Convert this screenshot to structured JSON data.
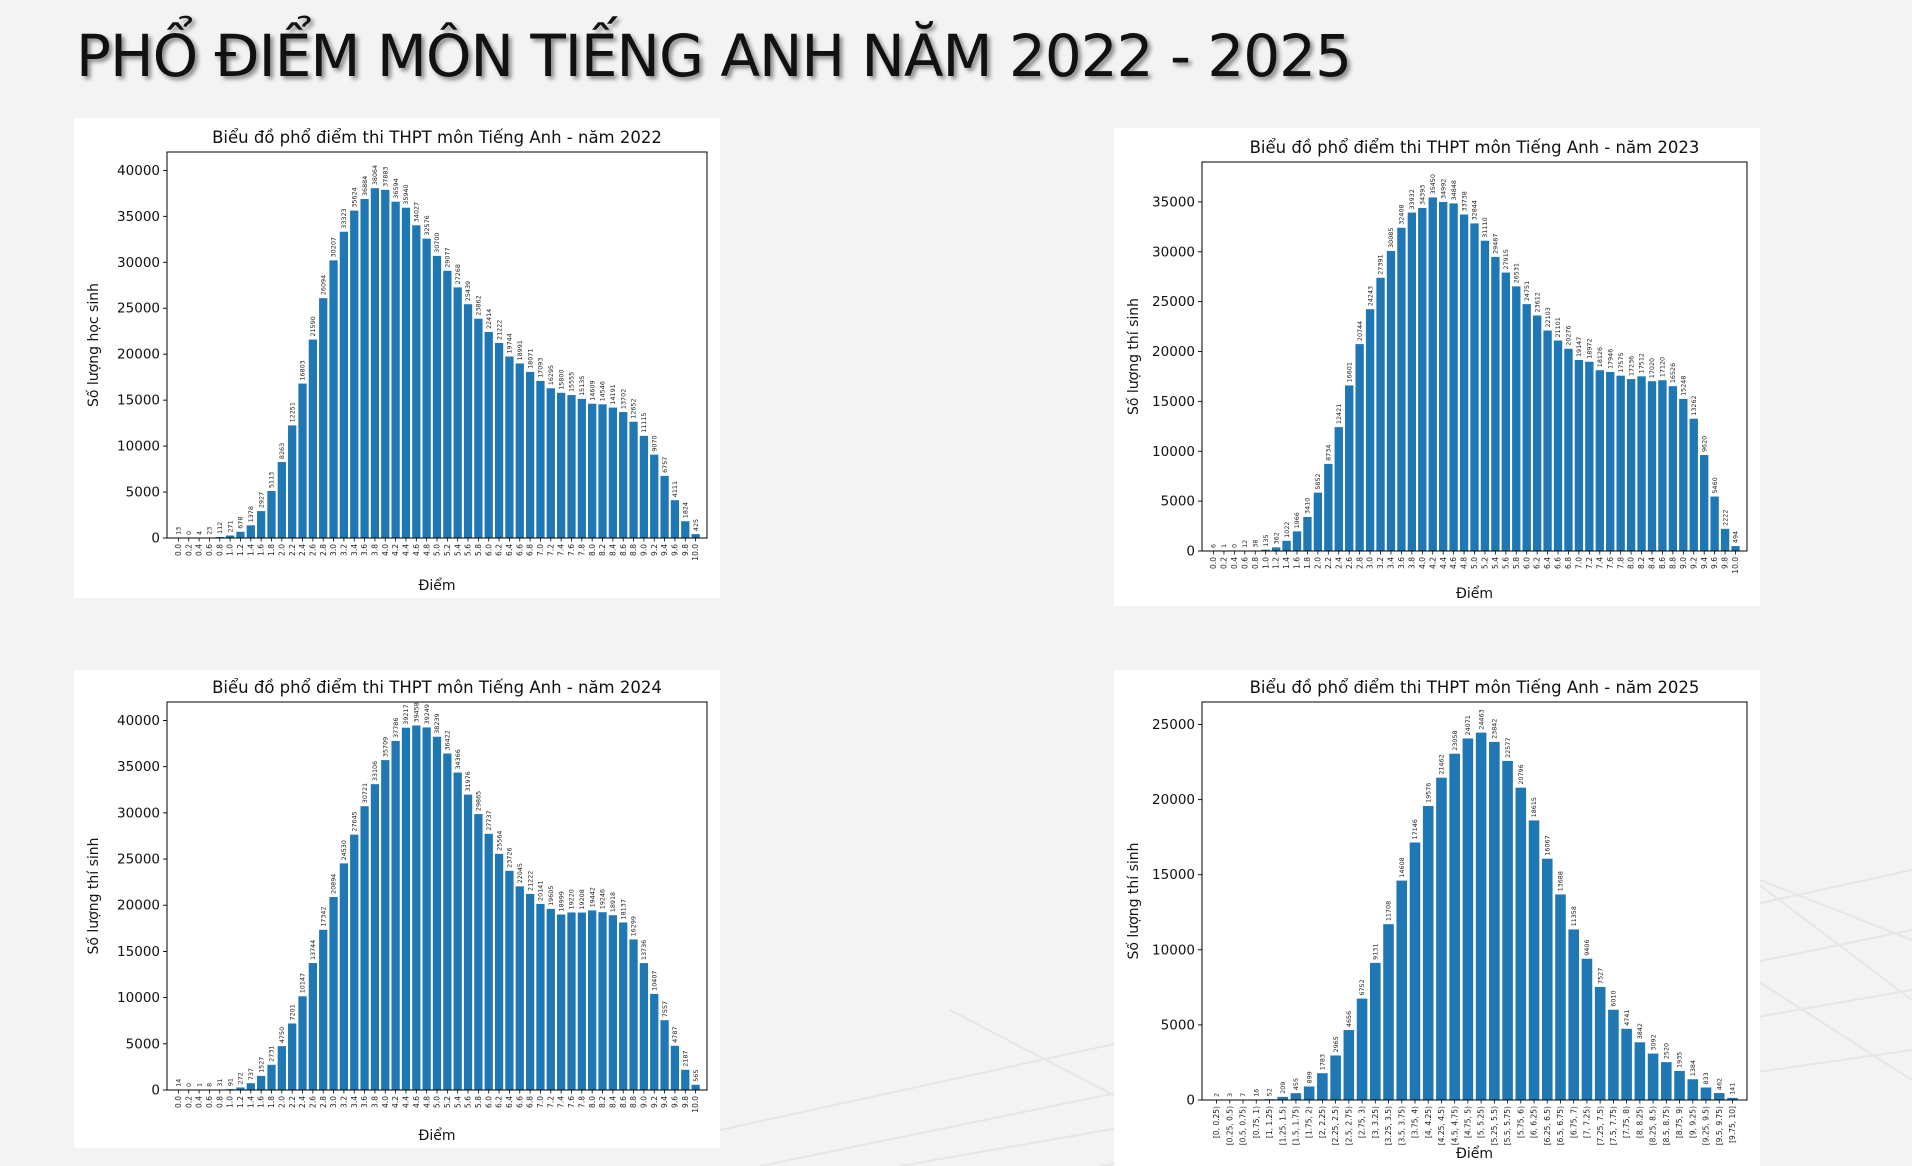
{
  "slide": {
    "title": "PHỔ ĐIỂM MÔN TIẾNG ANH NĂM 2022 - 2025",
    "background": "#f3f3f3",
    "bar_color": "#1f77b4"
  },
  "chart_data": [
    {
      "type": "bar",
      "title": "Biểu đồ phổ điểm thi THPT môn Tiếng Anh - năm 2022",
      "xlabel": "Điểm",
      "ylabel": "Số lượng học sinh",
      "ylim": [
        0,
        42000
      ],
      "yticks": [
        0,
        5000,
        10000,
        15000,
        20000,
        25000,
        30000,
        35000,
        40000
      ],
      "grid": false,
      "categories": [
        "0.0",
        "0.2",
        "0.4",
        "0.6",
        "0.8",
        "1.0",
        "1.2",
        "1.4",
        "1.6",
        "1.8",
        "2.0",
        "2.2",
        "2.4",
        "2.6",
        "2.8",
        "3.0",
        "3.2",
        "3.4",
        "3.6",
        "3.8",
        "4.0",
        "4.2",
        "4.4",
        "4.6",
        "4.8",
        "5.0",
        "5.2",
        "5.4",
        "5.6",
        "5.8",
        "6.0",
        "6.2",
        "6.4",
        "6.6",
        "6.8",
        "7.0",
        "7.2",
        "7.4",
        "7.6",
        "7.8",
        "8.0",
        "8.2",
        "8.4",
        "8.6",
        "8.8",
        "9.0",
        "9.2",
        "9.4",
        "9.6",
        "9.8",
        "10.0"
      ],
      "values": [
        13,
        0,
        4,
        23,
        112,
        271,
        678,
        1378,
        2927,
        5113,
        8263,
        12251,
        16803,
        21590,
        26094,
        30207,
        33323,
        35624,
        36884,
        38064,
        37883,
        36594,
        35940,
        34027,
        32576,
        30700,
        29077,
        27268,
        25439,
        23862,
        22414,
        21222,
        19744,
        18991,
        18071,
        17093,
        16295,
        15800,
        15555,
        15135,
        14609,
        14546,
        14191,
        13702,
        12652,
        11115,
        9070,
        6757,
        4111,
        1824,
        425
      ]
    },
    {
      "type": "bar",
      "title": "Biểu đồ phổ điểm thi THPT môn Tiếng Anh - năm 2023",
      "xlabel": "Điểm",
      "ylabel": "Số lượng thí sinh",
      "ylim": [
        0,
        39000
      ],
      "yticks": [
        0,
        5000,
        10000,
        15000,
        20000,
        25000,
        30000,
        35000
      ],
      "grid": false,
      "categories": [
        "0.0",
        "0.2",
        "0.4",
        "0.6",
        "0.8",
        "1.0",
        "1.2",
        "1.4",
        "1.6",
        "1.8",
        "2.0",
        "2.2",
        "2.4",
        "2.6",
        "2.8",
        "3.0",
        "3.2",
        "3.4",
        "3.6",
        "3.8",
        "4.0",
        "4.2",
        "4.4",
        "4.6",
        "4.8",
        "5.0",
        "5.2",
        "5.4",
        "5.6",
        "5.8",
        "6.0",
        "6.2",
        "6.4",
        "6.6",
        "6.8",
        "7.0",
        "7.2",
        "7.4",
        "7.6",
        "7.8",
        "8.0",
        "8.2",
        "8.4",
        "8.6",
        "8.8",
        "9.0",
        "9.2",
        "9.4",
        "9.6",
        "9.8",
        "10.0"
      ],
      "values": [
        6,
        1,
        0,
        12,
        38,
        135,
        362,
        1022,
        1966,
        3410,
        5852,
        8734,
        12421,
        16601,
        20744,
        24243,
        27391,
        30085,
        32408,
        33932,
        34393,
        35450,
        34992,
        34848,
        33738,
        32844,
        31110,
        29487,
        27915,
        26531,
        24751,
        23612,
        22103,
        21101,
        20276,
        19147,
        18972,
        18126,
        17946,
        17575,
        17236,
        17512,
        17020,
        17120,
        16526,
        15248,
        13262,
        9620,
        5460,
        2222,
        494
      ]
    },
    {
      "type": "bar",
      "title": "Biểu đồ phổ điểm thi THPT môn Tiếng Anh - năm 2024",
      "xlabel": "Điểm",
      "ylabel": "Số lượng thí sinh",
      "ylim": [
        0,
        42000
      ],
      "yticks": [
        0,
        5000,
        10000,
        15000,
        20000,
        25000,
        30000,
        35000,
        40000
      ],
      "grid": false,
      "categories": [
        "0.0",
        "0.2",
        "0.4",
        "0.6",
        "0.8",
        "1.0",
        "1.2",
        "1.4",
        "1.6",
        "1.8",
        "2.0",
        "2.2",
        "2.4",
        "2.6",
        "2.8",
        "3.0",
        "3.2",
        "3.4",
        "3.6",
        "3.8",
        "4.0",
        "4.2",
        "4.4",
        "4.6",
        "4.8",
        "5.0",
        "5.2",
        "5.4",
        "5.6",
        "5.8",
        "6.0",
        "6.2",
        "6.4",
        "6.6",
        "6.8",
        "7.0",
        "7.2",
        "7.4",
        "7.6",
        "7.8",
        "8.0",
        "8.2",
        "8.4",
        "8.6",
        "8.8",
        "9.0",
        "9.2",
        "9.4",
        "9.6",
        "9.8",
        "10.0"
      ],
      "values": [
        14,
        0,
        1,
        8,
        31,
        91,
        272,
        737,
        1527,
        2731,
        4750,
        7201,
        10147,
        13744,
        17342,
        20894,
        24530,
        27645,
        30721,
        33106,
        35709,
        37786,
        39217,
        39458,
        39249,
        38239,
        36422,
        34366,
        31976,
        29865,
        27737,
        25564,
        23726,
        22045,
        21222,
        20141,
        19605,
        18999,
        19220,
        19208,
        19442,
        19246,
        18918,
        18137,
        16299,
        13736,
        10407,
        7557,
        4787,
        2187,
        565
      ]
    },
    {
      "type": "bar",
      "title": "Biểu đồ phổ điểm thi THPT môn Tiếng Anh - năm 2025",
      "xlabel": "Điểm",
      "ylabel": "Số lượng thí sinh",
      "ylim": [
        0,
        26500
      ],
      "yticks": [
        0,
        5000,
        10000,
        15000,
        20000,
        25000
      ],
      "grid": false,
      "categories": [
        "[0, 0.25)",
        "[0.25, 0.5)",
        "[0.5, 0.75)",
        "[0.75, 1)",
        "[1, 1.25)",
        "[1.25, 1.5)",
        "[1.5, 1.75)",
        "[1.75, 2)",
        "[2, 2.25)",
        "[2.25, 2.5)",
        "[2.5, 2.75)",
        "[2.75, 3)",
        "[3, 3.25)",
        "[3.25, 3.5)",
        "[3.5, 3.75)",
        "[3.75, 4)",
        "[4, 4.25)",
        "[4.25, 4.5)",
        "[4.5, 4.75)",
        "[4.75, 5)",
        "[5, 5.25)",
        "[5.25, 5.5)",
        "[5.5, 5.75)",
        "[5.75, 6)",
        "[6, 6.25)",
        "[6.25, 6.5)",
        "[6.5, 6.75)",
        "[6.75, 7)",
        "[7, 7.25)",
        "[7.25, 7.5)",
        "[7.5, 7.75)",
        "[7.75, 8)",
        "[8, 8.25)",
        "[8.25, 8.5)",
        "[8.5, 8.75)",
        "[8.75, 9)",
        "[9, 9.25)",
        "[9.25, 9.5)",
        "[9.5, 9.75)",
        "[9.75, 10]"
      ],
      "values": [
        2,
        3,
        7,
        16,
        52,
        209,
        455,
        899,
        1783,
        2965,
        4656,
        6752,
        9131,
        11708,
        14608,
        17146,
        19576,
        21462,
        23058,
        24071,
        24463,
        23842,
        22577,
        20796,
        18615,
        16067,
        13688,
        11358,
        9406,
        7527,
        6010,
        4741,
        3842,
        3092,
        2520,
        1935,
        1384,
        833,
        462,
        141
      ]
    }
  ]
}
